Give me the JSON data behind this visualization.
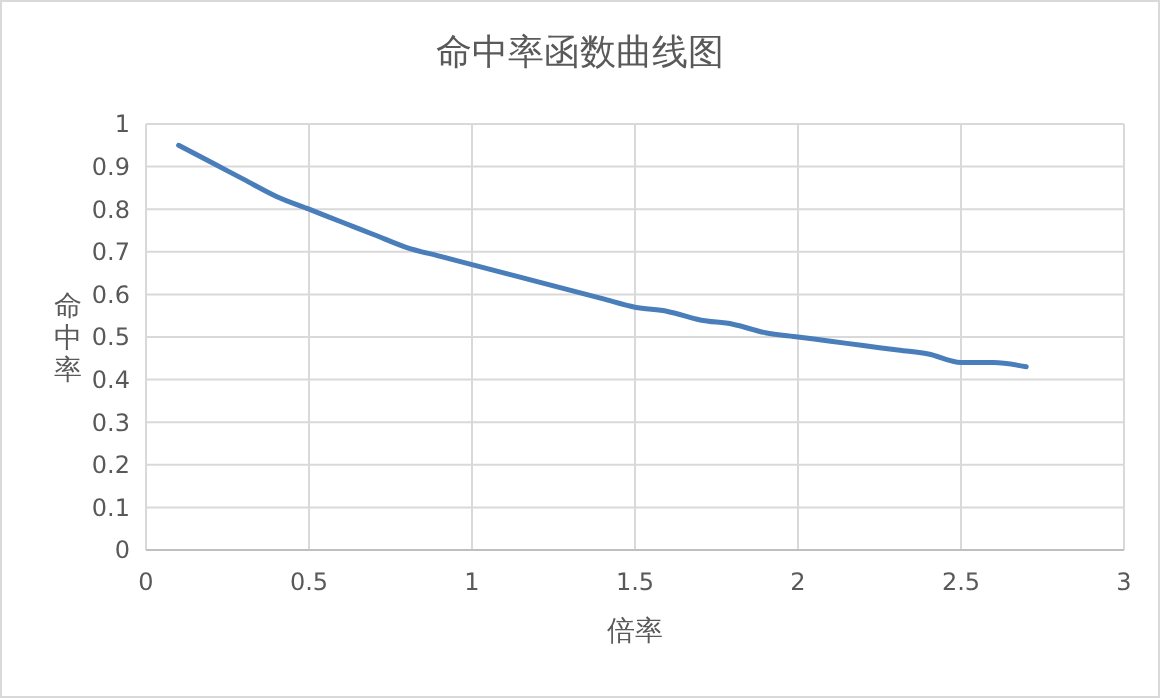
{
  "chart_data": {
    "type": "line",
    "title": "命中率函数曲线图",
    "xlabel": "倍率",
    "ylabel": "命中率",
    "x": [
      0.1,
      0.2,
      0.3,
      0.4,
      0.5,
      0.6,
      0.7,
      0.8,
      0.9,
      1.0,
      1.1,
      1.2,
      1.3,
      1.4,
      1.5,
      1.6,
      1.7,
      1.8,
      1.9,
      2.0,
      2.1,
      2.2,
      2.3,
      2.4,
      2.5,
      2.6,
      2.7
    ],
    "series": [
      {
        "color": "#4a7ebb",
        "values": [
          0.95,
          0.91,
          0.87,
          0.83,
          0.8,
          0.77,
          0.74,
          0.71,
          0.69,
          0.67,
          0.65,
          0.63,
          0.61,
          0.59,
          0.57,
          0.56,
          0.54,
          0.53,
          0.51,
          0.5,
          0.49,
          0.48,
          0.47,
          0.46,
          0.44,
          0.44,
          0.43
        ]
      }
    ],
    "xlim": [
      0,
      3
    ],
    "xticks": [
      0,
      0.5,
      1,
      1.5,
      2,
      2.5,
      3
    ],
    "ylim": [
      0,
      1
    ],
    "yticks": [
      0,
      0.1,
      0.2,
      0.3,
      0.4,
      0.5,
      0.6,
      0.7,
      0.8,
      0.9,
      1
    ],
    "grid": true,
    "marker": "none",
    "line_style": "solid"
  }
}
